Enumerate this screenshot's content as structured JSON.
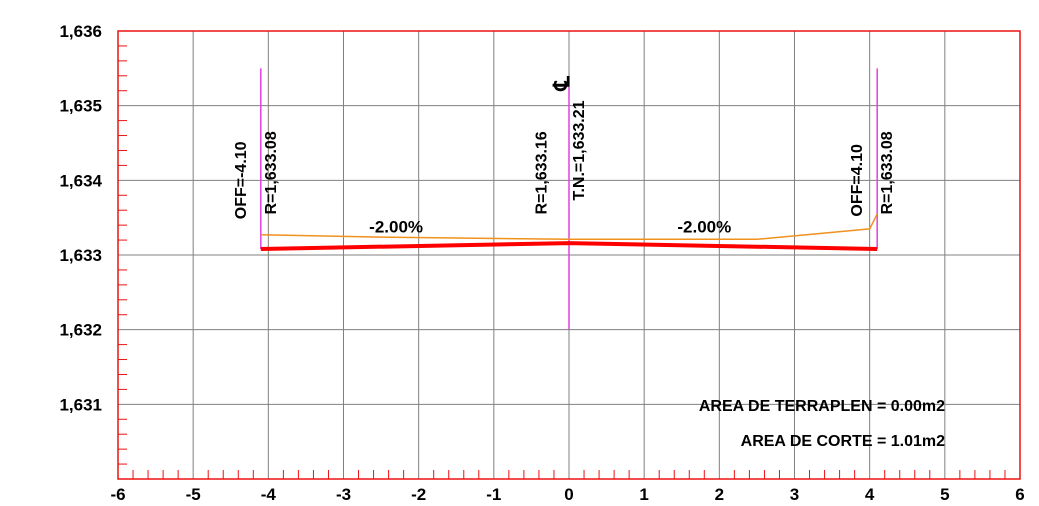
{
  "chart_data": {
    "type": "line",
    "xlim": [
      -6,
      6
    ],
    "ylim": [
      1630,
      1636
    ],
    "grid": true,
    "x_ticks": [
      "-6",
      "-5",
      "-4",
      "-3",
      "-2",
      "-1",
      "0",
      "1",
      "2",
      "3",
      "4",
      "5",
      "6"
    ],
    "y_ticks": [
      {
        "value": 1636,
        "label": "1,636"
      },
      {
        "value": 1635,
        "label": "1,635"
      },
      {
        "value": 1634,
        "label": "1,634"
      },
      {
        "value": 1633,
        "label": "1,633"
      },
      {
        "value": 1632,
        "label": "1,632"
      },
      {
        "value": 1631,
        "label": "1,631"
      }
    ],
    "series": [
      {
        "role": "design-section",
        "color": "#ff0000",
        "points": [
          [
            -4.1,
            1633.08
          ],
          [
            0,
            1633.16
          ],
          [
            4.1,
            1633.08
          ]
        ]
      },
      {
        "role": "existing-ground",
        "color": "#f0901e",
        "points": [
          [
            -4.1,
            1633.27
          ],
          [
            -2.5,
            1633.24
          ],
          [
            0,
            1633.21
          ],
          [
            2.5,
            1633.21
          ],
          [
            4.0,
            1633.35
          ],
          [
            4.1,
            1633.55
          ]
        ]
      }
    ],
    "vertical_lines": [
      {
        "x": -4.1,
        "y_from": 1633.08,
        "y_to": 1635.5,
        "color": "#e040e0"
      },
      {
        "x": 0,
        "y_from": 1632.0,
        "y_to": 1635.4,
        "color": "#e040e0"
      },
      {
        "x": 4.1,
        "y_from": 1633.08,
        "y_to": 1635.5,
        "color": "#e040e0"
      }
    ],
    "vertical_labels": [
      {
        "x": -4.3,
        "y": 1634.0,
        "text": "OFF=-4.10"
      },
      {
        "x": -3.9,
        "y": 1634.1,
        "text": "R=1,633.08"
      },
      {
        "x": -0.3,
        "y": 1634.1,
        "text": "R=1,633.16"
      },
      {
        "x": 0.2,
        "y": 1634.4,
        "text": "T.N.=1,633.21"
      },
      {
        "x": 3.9,
        "y": 1634.0,
        "text": "OFF=4.10"
      },
      {
        "x": 4.3,
        "y": 1634.1,
        "text": "R=1,633.08"
      }
    ],
    "slope_labels": [
      {
        "x": -2.3,
        "y": 1633.3,
        "text": "-2.00%"
      },
      {
        "x": 1.8,
        "y": 1633.3,
        "text": "-2.00%"
      }
    ],
    "centerline_symbol": {
      "x": 0,
      "y": 1635.3,
      "text": "℄"
    },
    "annotations": [
      {
        "text": "AREA DE TERRAPLEN = 0.00m2"
      },
      {
        "text": "AREA DE CORTE = 1.01m2"
      }
    ]
  },
  "colors": {
    "frame": "#ee1111",
    "grid": "#808080",
    "design": "#ff0000",
    "ground": "#f0901e",
    "vertical": "#e040e0"
  }
}
